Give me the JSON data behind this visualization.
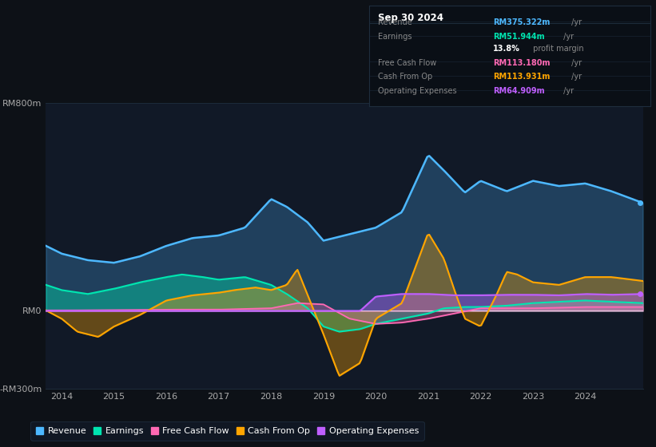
{
  "bg_color": "#0d1117",
  "plot_bg_color": "#111927",
  "tooltip_bg": "#0a0f16",
  "border_color": "#1e2d3d",
  "date": "Sep 30 2024",
  "tooltip_rows": [
    {
      "label": "Revenue",
      "value": "RM375.322m",
      "unit": " /yr",
      "color": "#4db8ff"
    },
    {
      "label": "Earnings",
      "value": "RM51.944m",
      "unit": " /yr",
      "color": "#00e5b0"
    },
    {
      "label": "",
      "value": "13.8%",
      "unit": " profit margin",
      "color": "#ffffff"
    },
    {
      "label": "Free Cash Flow",
      "value": "RM113.180m",
      "unit": " /yr",
      "color": "#ff69b4"
    },
    {
      "label": "Cash From Op",
      "value": "RM113.931m",
      "unit": " /yr",
      "color": "#ffa500"
    },
    {
      "label": "Operating Expenses",
      "value": "RM64.909m",
      "unit": " /yr",
      "color": "#bf5fff"
    }
  ],
  "ylim": [
    -300,
    800
  ],
  "xlim_start": 2013.7,
  "xlim_end": 2025.1,
  "xticks": [
    2014,
    2015,
    2016,
    2017,
    2018,
    2019,
    2020,
    2021,
    2022,
    2023,
    2024
  ],
  "ytick_vals": [
    -300,
    0,
    800
  ],
  "ytick_labels": [
    "-RM300m",
    "RM0",
    "RM800m"
  ],
  "legend": [
    {
      "label": "Revenue",
      "color": "#4db8ff"
    },
    {
      "label": "Earnings",
      "color": "#00e5b0"
    },
    {
      "label": "Free Cash Flow",
      "color": "#ff69b4"
    },
    {
      "label": "Cash From Op",
      "color": "#ffa500"
    },
    {
      "label": "Operating Expenses",
      "color": "#bf5fff"
    }
  ],
  "rev_x": [
    2013.7,
    2014.0,
    2014.5,
    2015.0,
    2015.5,
    2016.0,
    2016.5,
    2017.0,
    2017.5,
    2018.0,
    2018.3,
    2018.7,
    2019.0,
    2019.5,
    2020.0,
    2020.5,
    2021.0,
    2021.3,
    2021.7,
    2022.0,
    2022.5,
    2023.0,
    2023.5,
    2024.0,
    2024.5,
    2025.1
  ],
  "rev_y": [
    250,
    220,
    195,
    185,
    210,
    250,
    280,
    290,
    320,
    430,
    400,
    340,
    270,
    295,
    320,
    380,
    600,
    540,
    455,
    500,
    460,
    500,
    480,
    490,
    460,
    415
  ],
  "ear_x": [
    2013.7,
    2014.0,
    2014.5,
    2015.0,
    2015.5,
    2016.0,
    2016.3,
    2016.7,
    2017.0,
    2017.5,
    2018.0,
    2018.3,
    2018.7,
    2019.0,
    2019.3,
    2019.7,
    2020.0,
    2020.5,
    2021.0,
    2021.3,
    2021.7,
    2022.0,
    2022.5,
    2023.0,
    2023.5,
    2024.0,
    2024.5,
    2025.1
  ],
  "ear_y": [
    100,
    80,
    65,
    85,
    110,
    130,
    140,
    130,
    120,
    130,
    100,
    65,
    10,
    -60,
    -80,
    -70,
    -50,
    -30,
    -10,
    10,
    15,
    15,
    20,
    30,
    35,
    40,
    35,
    30
  ],
  "fcf_x": [
    2013.7,
    2014.0,
    2015.0,
    2016.0,
    2017.0,
    2018.0,
    2018.5,
    2019.0,
    2019.5,
    2020.0,
    2020.5,
    2021.0,
    2022.0,
    2023.0,
    2024.0,
    2025.1
  ],
  "fcf_y": [
    2,
    2,
    3,
    5,
    5,
    10,
    30,
    25,
    -30,
    -50,
    -45,
    -30,
    10,
    10,
    15,
    15
  ],
  "cop_x": [
    2013.7,
    2014.0,
    2014.3,
    2014.7,
    2015.0,
    2015.5,
    2016.0,
    2016.5,
    2017.0,
    2017.3,
    2017.7,
    2018.0,
    2018.3,
    2018.5,
    2018.7,
    2019.0,
    2019.3,
    2019.7,
    2020.0,
    2020.5,
    2021.0,
    2021.3,
    2021.5,
    2021.7,
    2022.0,
    2022.3,
    2022.5,
    2022.7,
    2023.0,
    2023.5,
    2024.0,
    2024.5,
    2025.1
  ],
  "cop_y": [
    2,
    -30,
    -80,
    -100,
    -60,
    -15,
    40,
    60,
    70,
    80,
    90,
    80,
    100,
    160,
    60,
    -90,
    -250,
    -200,
    -30,
    30,
    300,
    200,
    80,
    -30,
    -60,
    60,
    150,
    140,
    110,
    100,
    130,
    130,
    115
  ],
  "ope_x": [
    2013.7,
    2019.7,
    2020.0,
    2020.5,
    2021.0,
    2021.5,
    2022.0,
    2022.5,
    2023.0,
    2023.5,
    2024.0,
    2024.5,
    2025.1
  ],
  "ope_y": [
    0,
    0,
    55,
    65,
    65,
    60,
    60,
    62,
    62,
    60,
    65,
    62,
    65
  ]
}
